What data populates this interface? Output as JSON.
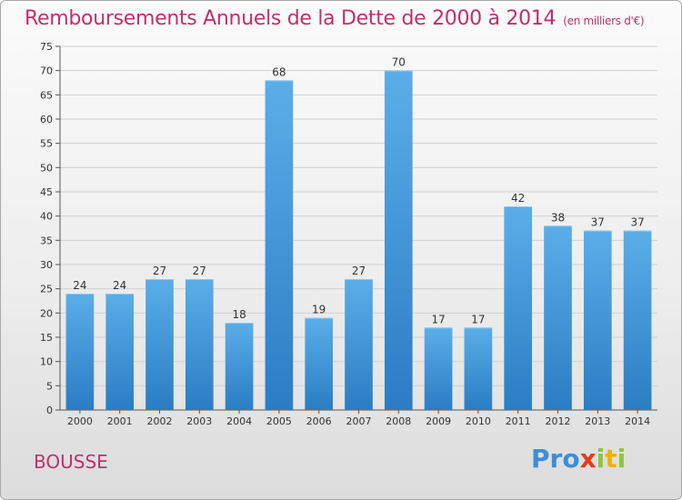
{
  "header": {
    "title": "Remboursements Annuels de la Dette de 2000 à 2014",
    "unit": "(en milliers d'€)"
  },
  "footer": {
    "location": "BOUSSE",
    "logo": "Proxiti"
  },
  "colors": {
    "bar_light": "#5aaee8",
    "bar_dark": "#2a7dc4",
    "title": "#c0306a",
    "grid": "#d0d0d0"
  },
  "chart_data": {
    "type": "bar",
    "title": "Remboursements Annuels de la Dette de 2000 à 2014",
    "subtitle": "(en milliers d'€)",
    "xlabel": "",
    "ylabel": "",
    "categories": [
      "2000",
      "2001",
      "2002",
      "2003",
      "2004",
      "2005",
      "2006",
      "2007",
      "2008",
      "2009",
      "2010",
      "2011",
      "2012",
      "2013",
      "2014"
    ],
    "values": [
      24,
      24,
      27,
      27,
      18,
      68,
      19,
      27,
      70,
      17,
      17,
      42,
      38,
      37,
      37
    ],
    "ylim": [
      0,
      75
    ],
    "yticks": [
      0,
      5,
      10,
      15,
      20,
      25,
      30,
      35,
      40,
      45,
      50,
      55,
      60,
      65,
      70,
      75
    ],
    "grid": true,
    "legend": "none"
  }
}
